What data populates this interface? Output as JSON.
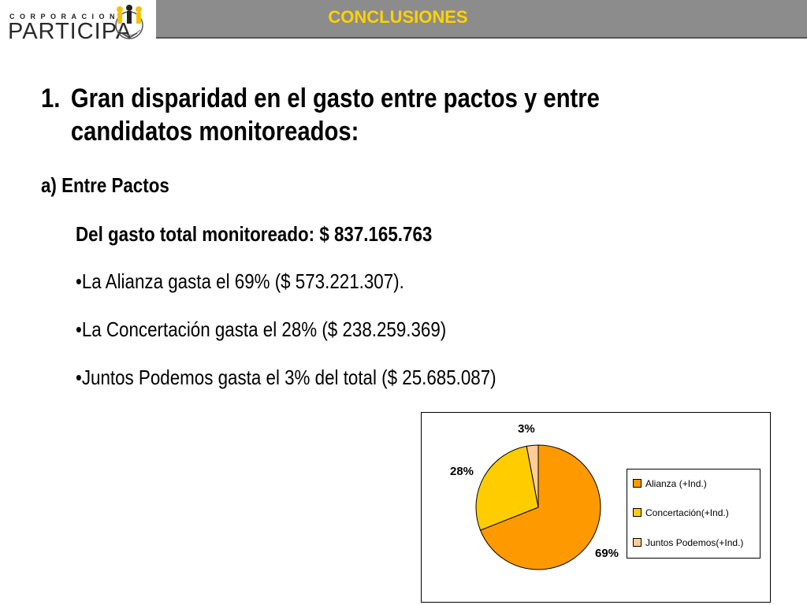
{
  "header": {
    "logo_small": "CORPORACION",
    "logo_big": "PARTICIPA",
    "title": "CONCLUSIONES"
  },
  "main": {
    "heading_num": "1.",
    "heading_text_1": "Gran disparidad en el gasto entre pactos y entre",
    "heading_text_2": "candidatos  monitoreados:",
    "subheading": "a) Entre Pactos",
    "total": "Del gasto total monitoreado: $ 837.165.763",
    "bullets": [
      "•La Alianza gasta el 69% ($ 573.221.307).",
      "•La Concertación gasta el 28% ($ 238.259.369)",
      "•Juntos Podemos gasta el 3% del total ($ 25.685.087)"
    ]
  },
  "chart_data": {
    "type": "pie",
    "title": "",
    "legend_position": "right",
    "series": [
      {
        "name": "Alianza (+Ind.)",
        "value": 69,
        "label": "69%",
        "color": "#ff9900"
      },
      {
        "name": "Concertación(+Ind.)",
        "value": 28,
        "label": "28%",
        "color": "#ffcc00"
      },
      {
        "name": "Juntos Podemos(+Ind.)",
        "value": 3,
        "label": "3%",
        "color": "#ffcc99"
      }
    ]
  },
  "colors": {
    "title_bar": "#8c8c8c",
    "title_text": "#ffd200"
  }
}
